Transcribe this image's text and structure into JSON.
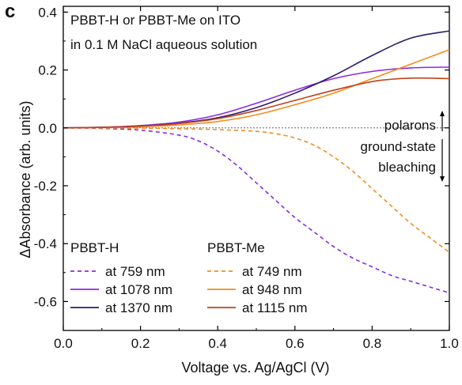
{
  "panel_label": "c",
  "chart_data": {
    "type": "line",
    "xlabel": "Voltage vs. Ag/AgCl (V)",
    "ylabel": "ΔAbsorbance (arb. units)",
    "xlim": [
      0.0,
      1.0
    ],
    "ylim": [
      -0.7,
      0.42
    ],
    "xticks": [
      "0.0",
      "0.2",
      "0.4",
      "0.6",
      "0.8",
      "1.0"
    ],
    "yticks": [
      "0.4",
      "0.2",
      "0.0",
      "-0.2",
      "-0.4",
      "-0.6"
    ],
    "ytick_values": [
      0.4,
      0.2,
      0.0,
      -0.2,
      -0.4,
      -0.6
    ],
    "xtick_values": [
      0.0,
      0.2,
      0.4,
      0.6,
      0.8,
      1.0
    ],
    "annotation_title": [
      "PBBT-H or PBBT-Me on ITO",
      "in 0.1 M NaCl aqueous solution"
    ],
    "annotation_polarons": "polarons",
    "annotation_bleaching": [
      "ground-state",
      "bleaching"
    ],
    "legend_groups": [
      "PBBT-H",
      "PBBT-Me"
    ],
    "series": [
      {
        "name": "at 759 nm",
        "group": "PBBT-H",
        "color": "#8a2be2",
        "dash": "dashed",
        "x": [
          0.0,
          0.1,
          0.2,
          0.3,
          0.35,
          0.4,
          0.45,
          0.5,
          0.55,
          0.6,
          0.65,
          0.7,
          0.75,
          0.8,
          0.85,
          0.9,
          0.95,
          1.0
        ],
        "y": [
          0.0,
          -0.002,
          -0.008,
          -0.025,
          -0.045,
          -0.08,
          -0.13,
          -0.19,
          -0.25,
          -0.31,
          -0.36,
          -0.41,
          -0.45,
          -0.48,
          -0.51,
          -0.53,
          -0.55,
          -0.57
        ]
      },
      {
        "name": "at 1078 nm",
        "group": "PBBT-H",
        "color": "#8a2be2",
        "dash": "solid",
        "x": [
          0.0,
          0.1,
          0.2,
          0.3,
          0.4,
          0.5,
          0.6,
          0.7,
          0.8,
          0.9,
          1.0
        ],
        "y": [
          0.0,
          0.002,
          0.008,
          0.02,
          0.045,
          0.085,
          0.13,
          0.17,
          0.195,
          0.207,
          0.21
        ]
      },
      {
        "name": "at 1370 nm",
        "group": "PBBT-H",
        "color": "#2d1b69",
        "dash": "solid",
        "x": [
          0.0,
          0.1,
          0.2,
          0.3,
          0.4,
          0.5,
          0.6,
          0.7,
          0.8,
          0.9,
          1.0
        ],
        "y": [
          0.0,
          0.002,
          0.006,
          0.016,
          0.035,
          0.07,
          0.12,
          0.18,
          0.25,
          0.31,
          0.335
        ]
      },
      {
        "name": "at 749 nm",
        "group": "PBBT-Me",
        "color": "#f28c1e",
        "dash": "dashed",
        "x": [
          0.0,
          0.2,
          0.3,
          0.4,
          0.5,
          0.55,
          0.6,
          0.65,
          0.7,
          0.75,
          0.8,
          0.85,
          0.9,
          0.95,
          1.0
        ],
        "y": [
          0.0,
          -0.001,
          -0.003,
          -0.006,
          -0.012,
          -0.02,
          -0.035,
          -0.06,
          -0.1,
          -0.15,
          -0.21,
          -0.27,
          -0.33,
          -0.38,
          -0.43
        ]
      },
      {
        "name": "at 948 nm",
        "group": "PBBT-Me",
        "color": "#f28c1e",
        "dash": "solid",
        "x": [
          0.0,
          0.1,
          0.2,
          0.3,
          0.4,
          0.5,
          0.6,
          0.7,
          0.8,
          0.9,
          1.0
        ],
        "y": [
          0.0,
          0.001,
          0.004,
          0.01,
          0.022,
          0.045,
          0.08,
          0.12,
          0.17,
          0.22,
          0.27
        ]
      },
      {
        "name": "at 1115 nm",
        "group": "PBBT-Me",
        "color": "#c0431b",
        "dash": "solid",
        "x": [
          0.0,
          0.1,
          0.2,
          0.3,
          0.4,
          0.5,
          0.6,
          0.7,
          0.8,
          0.85,
          0.9,
          0.95,
          1.0
        ],
        "y": [
          0.0,
          0.002,
          0.006,
          0.015,
          0.032,
          0.06,
          0.095,
          0.13,
          0.16,
          0.168,
          0.172,
          0.172,
          0.17
        ]
      }
    ],
    "zero_line": true,
    "grid": false,
    "legend_position": "bottom-left"
  }
}
